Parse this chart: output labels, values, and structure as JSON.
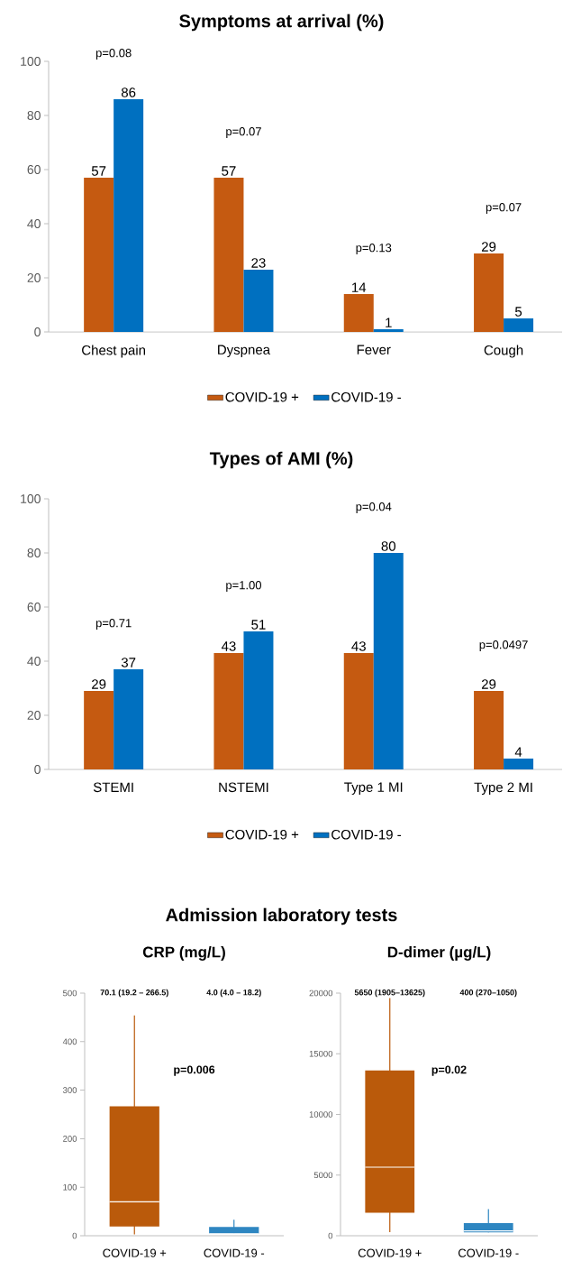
{
  "chart_data": [
    {
      "type": "bar",
      "title": "Symptoms at arrival (%)",
      "categories": [
        "Chest pain",
        "Dyspnea",
        "Fever",
        "Cough"
      ],
      "series": [
        {
          "name": "COVID-19 +",
          "color": "#c55a11",
          "values": [
            57,
            57,
            14,
            29
          ]
        },
        {
          "name": "COVID-19 -",
          "color": "#0070c0",
          "values": [
            86,
            23,
            1,
            5
          ]
        }
      ],
      "ylim": [
        0,
        100
      ],
      "yticks": [
        0,
        20,
        40,
        60,
        80,
        100
      ],
      "data_labels": true,
      "legend": "bottom",
      "annotations": [
        "p=0.08",
        "p=0.07",
        "p=0.13",
        "p=0.07"
      ]
    },
    {
      "type": "bar",
      "title": "Types of AMI (%)",
      "categories": [
        "STEMI",
        "NSTEMI",
        "Type 1 MI",
        "Type 2 MI"
      ],
      "series": [
        {
          "name": "COVID-19 +",
          "color": "#c55a11",
          "values": [
            29,
            43,
            43,
            29
          ]
        },
        {
          "name": "COVID-19 -",
          "color": "#0070c0",
          "values": [
            37,
            51,
            80,
            4
          ]
        }
      ],
      "ylim": [
        0,
        100
      ],
      "yticks": [
        0,
        20,
        40,
        60,
        80,
        100
      ],
      "data_labels": true,
      "legend": "bottom",
      "annotations": [
        "p=0.71",
        "p=1.00",
        "p=0.04",
        "p=0.0497"
      ]
    },
    {
      "type": "box",
      "title": "Admission laboratory tests",
      "subtitle": "CRP (mg/L)",
      "categories": [
        "COVID-19 +",
        "COVID-19 -"
      ],
      "colors": [
        "#ba5a0b",
        "#2e86c1"
      ],
      "boxes": [
        {
          "low": 3,
          "q1": 19.2,
          "median": 70.1,
          "q3": 266.5,
          "high": 454
        },
        {
          "low": 4.0,
          "q1": 4.0,
          "median": 4.0,
          "q3": 18.2,
          "high": 33
        }
      ],
      "ylim": [
        0,
        500
      ],
      "yticks": [
        0,
        100,
        200,
        300,
        400,
        500
      ],
      "annotations": [
        "70.1 (19.2 – 266.5)",
        "4.0 (4.0 – 18.2)",
        "p=0.006"
      ]
    },
    {
      "type": "box",
      "subtitle": "D-dimer (µg/L)",
      "categories": [
        "COVID-19 +",
        "COVID-19 -"
      ],
      "colors": [
        "#ba5a0b",
        "#2e86c1"
      ],
      "boxes": [
        {
          "low": 300,
          "q1": 1905,
          "median": 5650,
          "q3": 13625,
          "high": 19600
        },
        {
          "low": 270,
          "q1": 270,
          "median": 400,
          "q3": 1050,
          "high": 2200
        }
      ],
      "ylim": [
        0,
        20000
      ],
      "yticks": [
        0,
        5000,
        10000,
        15000,
        20000
      ],
      "annotations": [
        "5650 (1905–13625)",
        "400 (270–1050)",
        "p=0.02"
      ]
    }
  ]
}
